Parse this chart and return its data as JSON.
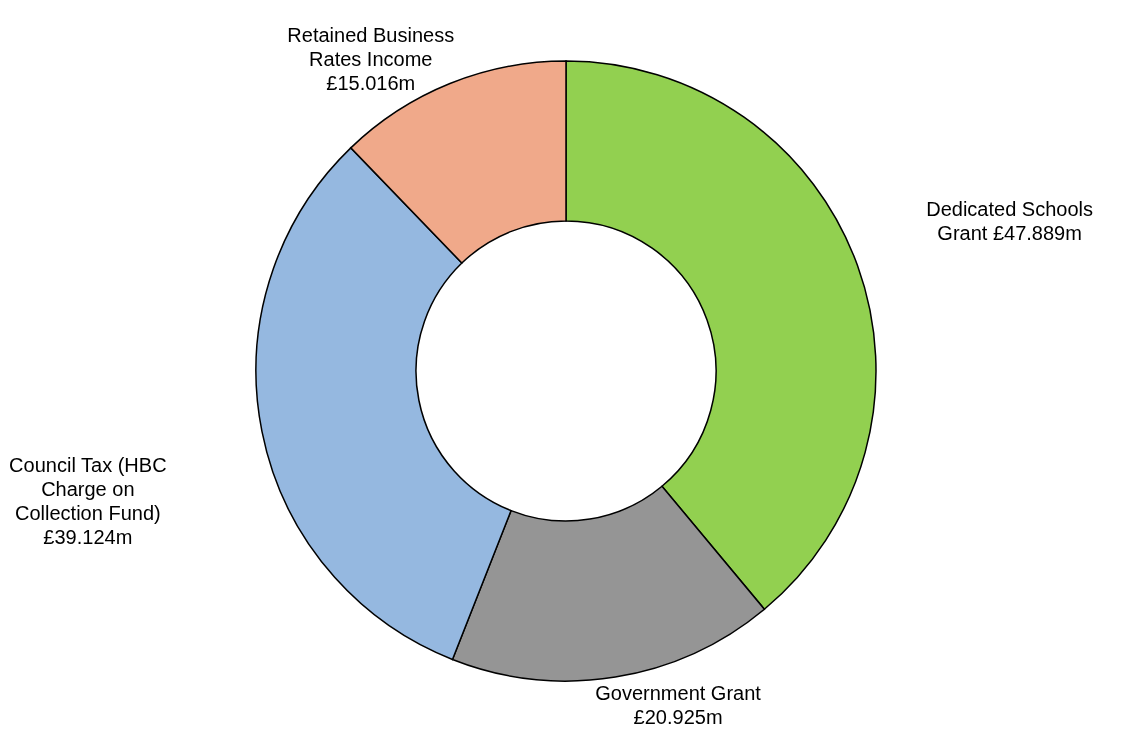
{
  "chart_data": {
    "type": "donut",
    "categories": [
      "Dedicated Schools Grant",
      "Government Grant",
      "Council Tax (HBC Charge on Collection Fund)",
      "Retained Business Rates Income"
    ],
    "values": [
      47.889,
      20.925,
      39.124,
      15.016
    ],
    "value_labels": [
      "£47.889m",
      "£20.925m",
      "£39.124m",
      "£15.016m"
    ],
    "colors": [
      "#92d050",
      "#959595",
      "#95b8e0",
      "#f0a98a"
    ]
  }
}
